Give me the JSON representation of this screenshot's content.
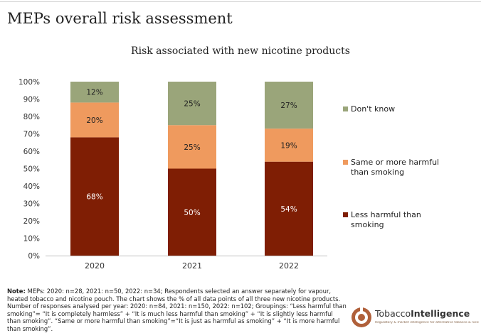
{
  "page": {
    "title": "MEPs overall risk assessment"
  },
  "note": {
    "label": "Note:",
    "text": "MEPs: 2020: n=28, 2021: n=50, 2022: n=34; Respondents selected an answer separately for vapour, heated tobacco and nicotine pouch. The chart shows the % of all data points of all three new nicotine products. Number of responses analysed per year: 2020: n=84, 2021: n=150, 2022: n=102; Groupings: “Less harmful than smoking”= “It is completely harmless” + “It is much less harmful than smoking” + “It is slightly less harmful than smoking”. “Same or more harmful than smoking”=“It is just as harmful as smoking” + “It is more harmful than smoking”."
  },
  "logo": {
    "name_regular": "Tobacco",
    "name_bold": "Intelligence",
    "tagline": "Regulatory & market intelligence for alternative tobacco & nicotine products",
    "mark_color": "#b0603a"
  },
  "chart_data": {
    "type": "bar",
    "stacked": true,
    "title": "Risk associated with new nicotine products",
    "xlabel": "",
    "ylabel": "",
    "categories": [
      "2020",
      "2021",
      "2022"
    ],
    "ylim": [
      0,
      100
    ],
    "yticks": [
      "0%",
      "10%",
      "20%",
      "30%",
      "40%",
      "50%",
      "60%",
      "70%",
      "80%",
      "90%",
      "100%"
    ],
    "series": [
      {
        "name": "Less harmful than smoking",
        "values": [
          68,
          50,
          54
        ],
        "labels": [
          "68%",
          "50%",
          "54%"
        ],
        "color": "#7f1e04",
        "label_color": "#ffffff"
      },
      {
        "name": "Same or more harmful than smoking",
        "values": [
          20,
          25,
          19
        ],
        "labels": [
          "20%",
          "25%",
          "19%"
        ],
        "color": "#ef9a5e",
        "label_color": "#222222"
      },
      {
        "name": "Don't know",
        "values": [
          12,
          25,
          27
        ],
        "labels": [
          "12%",
          "25%",
          "27%"
        ],
        "color": "#9aa57a",
        "label_color": "#222222"
      }
    ],
    "legend": {
      "position": "right",
      "entries": [
        "Don't know",
        "Same or more harmful than smoking",
        "Less harmful than smoking"
      ]
    },
    "grid": false
  }
}
